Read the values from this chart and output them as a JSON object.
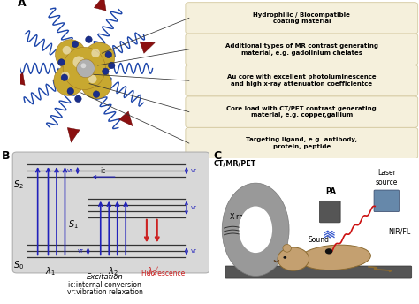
{
  "panel_A_label": "A",
  "panel_B_label": "B",
  "panel_C_label": "C",
  "bg_color": "#ffffff",
  "beige_box": "#f5f0dc",
  "beige_border": "#d4c9a0",
  "box_texts": [
    "Hydrophilic / Biocompatible\ncoating material",
    "Additional types of MR contrast generating\nmaterial, e.g. gadolinium chelates",
    "Au core with excellent photoluminescence\nand high x-ray attenuation coefficientce",
    "Core load with CT/PET contrast generating\nmaterial, e.g. copper,gallium",
    "Targeting ligand, e.g. antibody,\nprotein, peptide"
  ],
  "blue_color": "#2222bb",
  "red_color": "#cc2222",
  "panel_B_bg": "#dcdcdc",
  "gold_color": "#c8a830",
  "dark_gold": "#a07820",
  "silver_color": "#b0b0b0",
  "navy_dot": "#1a2e8a",
  "chain_color": "#1a44aa",
  "arrow_red": "#8b1010"
}
